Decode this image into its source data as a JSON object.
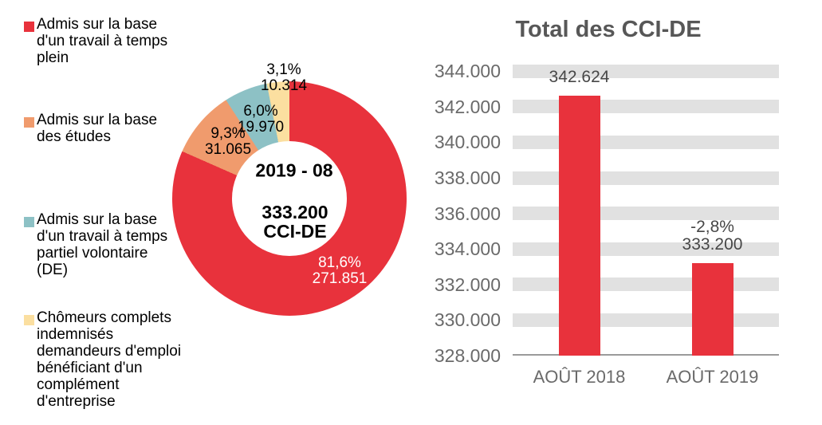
{
  "palette": {
    "red": "#E8323C",
    "orange": "#F09B6D",
    "teal": "#8DC1C5",
    "cream": "#FBDFA0",
    "stripe_gray": "#E1E1E1",
    "axis_line_gray": "#9B9B9B",
    "title_gray": "#575757",
    "tick_gray": "#6A6A6A",
    "bar_label_gray": "#474747",
    "black": "#000000",
    "white": "#FFFFFF"
  },
  "legend": {
    "items": [
      {
        "label": "Admis sur la base\nd'un travail à temps\nplein",
        "color_key": "red"
      },
      {
        "label": "Admis sur la base\ndes études",
        "color_key": "orange"
      },
      {
        "label": "Admis sur la base\nd'un travail à temps\npartiel volontaire\n(DE)",
        "color_key": "teal"
      },
      {
        "label": "Chômeurs complets\nindemnisés\ndemandeurs d'emploi\nbénéficiant d'un\ncomplément\nd'entreprise",
        "color_key": "cream"
      }
    ]
  },
  "donut": {
    "center_period": "2019 - 08",
    "center_total": "333.200\nCCI-DE",
    "slice_labels": [
      {
        "text": "81,6%\n271.851",
        "color_key": "white"
      },
      {
        "text": "9,3%\n31.065",
        "color_key": "black"
      },
      {
        "text": "6,0%\n19.970",
        "color_key": "black"
      },
      {
        "text": "3,1%\n10.314",
        "color_key": "black"
      }
    ]
  },
  "bar_chart": {
    "title": "Total des CCI-DE"
  },
  "chart_data": [
    {
      "type": "pie",
      "subtype": "donut",
      "title": "",
      "labels": [
        "Admis sur la base d'un travail à temps plein",
        "Admis sur la base des études",
        "Admis sur la base d'un travail à temps partiel volontaire (DE)",
        "Chômeurs complets indemnisés demandeurs d'emploi bénéficiant d'un complément d'entreprise"
      ],
      "values": [
        271851,
        31065,
        19970,
        10314
      ],
      "percentages": [
        81.6,
        9.3,
        6.0,
        3.1
      ],
      "colors": [
        "#E8323C",
        "#F09B6D",
        "#8DC1C5",
        "#FBDFA0"
      ],
      "center_text": [
        "2019 - 08",
        "333.200",
        "CCI-DE"
      ],
      "total": 333200,
      "start_angle_deg": 0,
      "direction": "clockwise",
      "legend_position": "left"
    },
    {
      "type": "bar",
      "title": "Total des CCI-DE",
      "categories": [
        "AOÛT 2018",
        "AOÛT 2019"
      ],
      "values": [
        342624,
        333200
      ],
      "bar_labels": [
        "342.624",
        "-2,8%\n333.200"
      ],
      "change_pct": -2.8,
      "ylim": [
        328000,
        344000
      ],
      "ytick_step": 2000,
      "ytick_labels": [
        "344.000",
        "342.000",
        "340.000",
        "338.000",
        "336.000",
        "334.000",
        "332.000",
        "330.000",
        "328.000"
      ],
      "grid": "thick horizontal gray stripes",
      "legend_position": "none"
    }
  ]
}
